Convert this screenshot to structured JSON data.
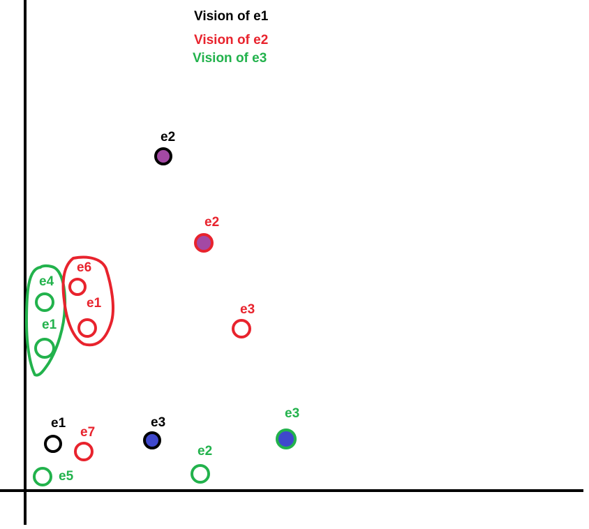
{
  "colors": {
    "black": "#000000",
    "red": "#e8232d",
    "green": "#22b24c",
    "purple": "#a349a4",
    "blue": "#3f48cc"
  },
  "legend": [
    {
      "text": "Vision of e1",
      "color": "black"
    },
    {
      "text": "Vision of e2",
      "color": "red"
    },
    {
      "text": "Vision of e3",
      "color": "green"
    }
  ],
  "points": [
    {
      "label": "e2",
      "view": "e1",
      "fill": "purple"
    },
    {
      "label": "e2",
      "view": "e2",
      "fill": "purple"
    },
    {
      "label": "e6",
      "view": "e2"
    },
    {
      "label": "e1",
      "view": "e2"
    },
    {
      "label": "e3",
      "view": "e2"
    },
    {
      "label": "e4",
      "view": "e3"
    },
    {
      "label": "e1",
      "view": "e3"
    },
    {
      "label": "e1",
      "view": "e1"
    },
    {
      "label": "e7",
      "view": "e2"
    },
    {
      "label": "e3",
      "view": "e1",
      "fill": "blue"
    },
    {
      "label": "e2",
      "view": "e3"
    },
    {
      "label": "e3",
      "view": "e3",
      "fill": "blue"
    },
    {
      "label": "e5",
      "view": "e3"
    }
  ],
  "groups": [
    {
      "view": "e3",
      "members": [
        "e4",
        "e1"
      ]
    },
    {
      "view": "e2",
      "members": [
        "e6",
        "e1"
      ]
    }
  ]
}
